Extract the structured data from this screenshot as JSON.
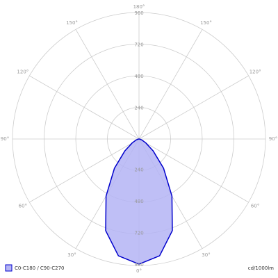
{
  "chart_data": {
    "type": "polar",
    "unit_label": "cd/1000lm",
    "rlim": [
      0,
      960
    ],
    "rticks": [
      240,
      480,
      720,
      960
    ],
    "angle_ticks": [
      {
        "value": 0,
        "label": "0°"
      },
      {
        "value": 30,
        "label": "30°"
      },
      {
        "value": 60,
        "label": "60°"
      },
      {
        "value": 90,
        "label": "90°"
      },
      {
        "value": 120,
        "label": "120°"
      },
      {
        "value": 150,
        "label": "150°"
      },
      {
        "value": 180,
        "label": "180°"
      }
    ],
    "x": [
      -90,
      -80,
      -70,
      -60,
      -50,
      -40,
      -30,
      -20,
      -10,
      0,
      10,
      20,
      30,
      40,
      50,
      60,
      70,
      80,
      90
    ],
    "series": [
      {
        "name": "C0-C180 / C90-C270",
        "color": "#0000cc",
        "fill": "#b4b4f4",
        "values": [
          0,
          8,
          25,
          60,
          140,
          290,
          500,
          740,
          900,
          950,
          900,
          740,
          500,
          290,
          140,
          60,
          25,
          8,
          0
        ]
      }
    ]
  }
}
